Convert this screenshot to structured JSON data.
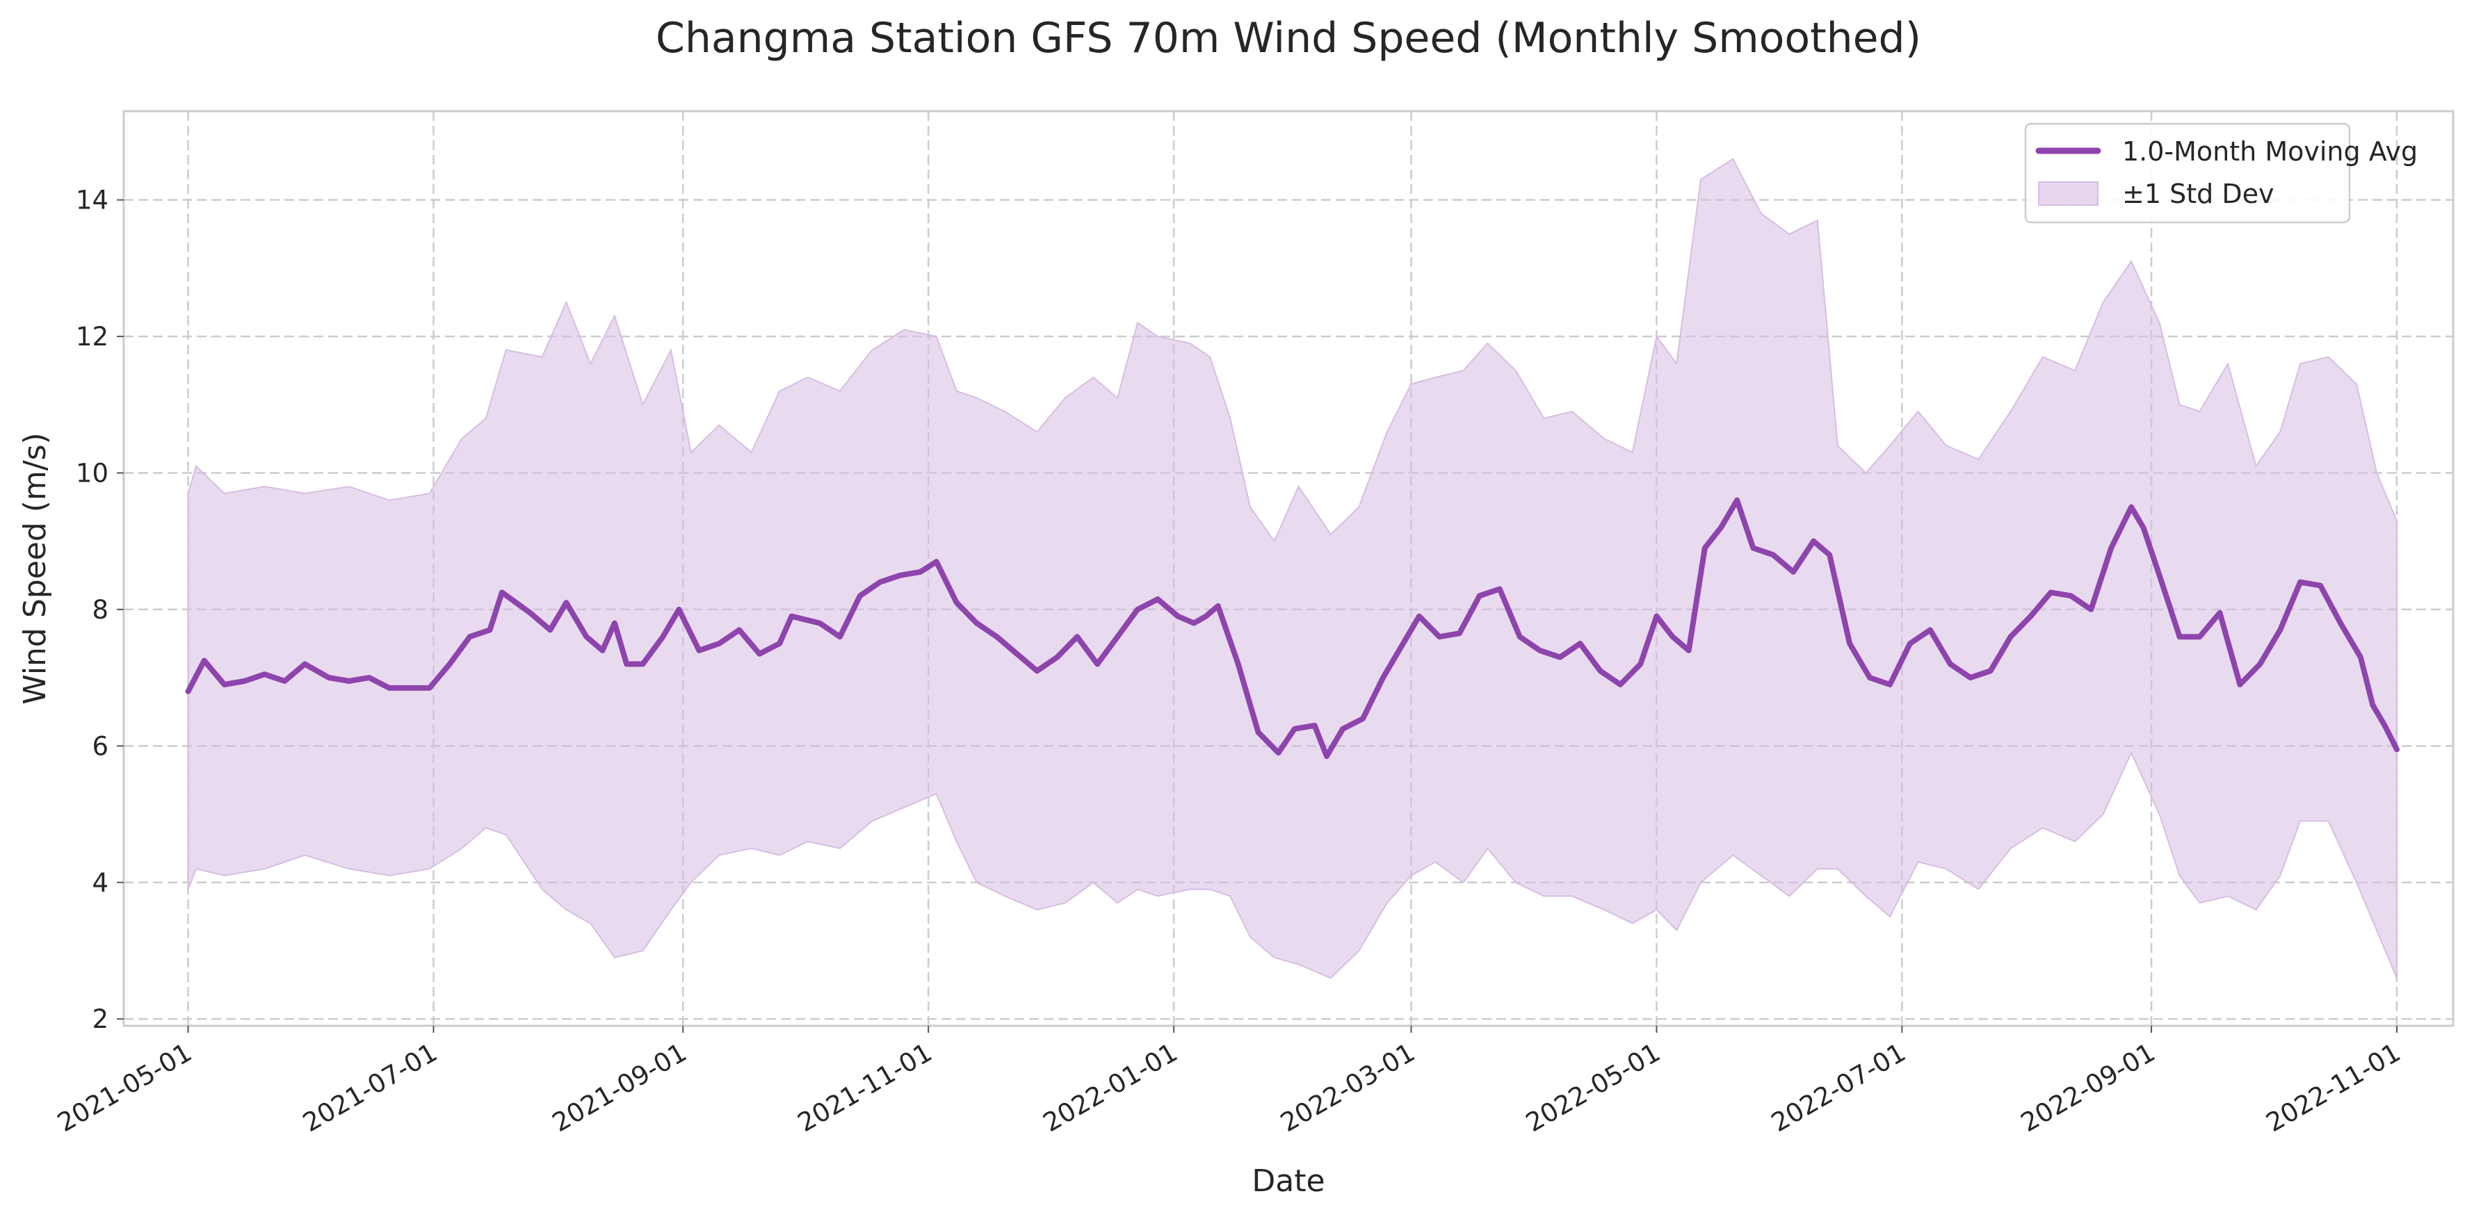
{
  "chart_data": {
    "type": "line",
    "title": "Changma Station GFS 70m Wind Speed (Monthly Smoothed)",
    "xlabel": "Date",
    "ylabel": "Wind Speed (m/s)",
    "x_range": [
      "2021-04-15",
      "2022-11-15"
    ],
    "ylim": [
      1.9,
      15.3
    ],
    "y_ticks": [
      2,
      4,
      6,
      8,
      10,
      12,
      14
    ],
    "x_ticks": [
      "2021-05-01",
      "2021-07-01",
      "2021-09-01",
      "2021-11-01",
      "2022-01-01",
      "2022-03-01",
      "2022-05-01",
      "2022-07-01",
      "2022-09-01",
      "2022-11-01"
    ],
    "grid": true,
    "legend_position": "top-right",
    "colors": {
      "line": "#8E44AD",
      "band": "#D7BDE2",
      "grid": "#CCCCCC",
      "axes": "#CCCCCC"
    },
    "series": [
      {
        "name": "1.0-Month Moving Avg",
        "kind": "line",
        "points": [
          [
            "2021-05-01",
            6.8
          ],
          [
            "2021-05-05",
            7.25
          ],
          [
            "2021-05-10",
            6.9
          ],
          [
            "2021-05-15",
            6.95
          ],
          [
            "2021-05-20",
            7.05
          ],
          [
            "2021-05-25",
            6.95
          ],
          [
            "2021-05-30",
            7.2
          ],
          [
            "2021-06-05",
            7.0
          ],
          [
            "2021-06-10",
            6.95
          ],
          [
            "2021-06-15",
            7.0
          ],
          [
            "2021-06-20",
            6.85
          ],
          [
            "2021-06-25",
            6.85
          ],
          [
            "2021-06-30",
            6.85
          ],
          [
            "2021-07-05",
            7.2
          ],
          [
            "2021-07-10",
            7.6
          ],
          [
            "2021-07-15",
            7.7
          ],
          [
            "2021-07-18",
            8.25
          ],
          [
            "2021-07-25",
            7.95
          ],
          [
            "2021-07-30",
            7.7
          ],
          [
            "2021-08-03",
            8.1
          ],
          [
            "2021-08-08",
            7.6
          ],
          [
            "2021-08-12",
            7.4
          ],
          [
            "2021-08-15",
            7.8
          ],
          [
            "2021-08-18",
            7.2
          ],
          [
            "2021-08-22",
            7.2
          ],
          [
            "2021-08-27",
            7.6
          ],
          [
            "2021-08-31",
            8.0
          ],
          [
            "2021-09-05",
            7.4
          ],
          [
            "2021-09-10",
            7.5
          ],
          [
            "2021-09-15",
            7.7
          ],
          [
            "2021-09-20",
            7.35
          ],
          [
            "2021-09-25",
            7.5
          ],
          [
            "2021-09-28",
            7.9
          ],
          [
            "2021-10-05",
            7.8
          ],
          [
            "2021-10-10",
            7.6
          ],
          [
            "2021-10-15",
            8.2
          ],
          [
            "2021-10-20",
            8.4
          ],
          [
            "2021-10-25",
            8.5
          ],
          [
            "2021-10-30",
            8.55
          ],
          [
            "2021-11-03",
            8.7
          ],
          [
            "2021-11-08",
            8.1
          ],
          [
            "2021-11-13",
            7.8
          ],
          [
            "2021-11-18",
            7.6
          ],
          [
            "2021-11-23",
            7.35
          ],
          [
            "2021-11-28",
            7.1
          ],
          [
            "2021-12-03",
            7.3
          ],
          [
            "2021-12-08",
            7.6
          ],
          [
            "2021-12-13",
            7.2
          ],
          [
            "2021-12-18",
            7.6
          ],
          [
            "2021-12-23",
            8.0
          ],
          [
            "2021-12-28",
            8.15
          ],
          [
            "2022-01-02",
            7.9
          ],
          [
            "2022-01-06",
            7.8
          ],
          [
            "2022-01-09",
            7.9
          ],
          [
            "2022-01-12",
            8.05
          ],
          [
            "2022-01-17",
            7.2
          ],
          [
            "2022-01-22",
            6.2
          ],
          [
            "2022-01-27",
            5.9
          ],
          [
            "2022-01-31",
            6.25
          ],
          [
            "2022-02-05",
            6.3
          ],
          [
            "2022-02-08",
            5.85
          ],
          [
            "2022-02-12",
            6.25
          ],
          [
            "2022-02-17",
            6.4
          ],
          [
            "2022-02-22",
            7.0
          ],
          [
            "2022-02-27",
            7.5
          ],
          [
            "2022-03-03",
            7.9
          ],
          [
            "2022-03-08",
            7.6
          ],
          [
            "2022-03-13",
            7.65
          ],
          [
            "2022-03-18",
            8.2
          ],
          [
            "2022-03-23",
            8.3
          ],
          [
            "2022-03-28",
            7.6
          ],
          [
            "2022-04-02",
            7.4
          ],
          [
            "2022-04-07",
            7.3
          ],
          [
            "2022-04-12",
            7.5
          ],
          [
            "2022-04-17",
            7.1
          ],
          [
            "2022-04-22",
            6.9
          ],
          [
            "2022-04-27",
            7.2
          ],
          [
            "2022-05-01",
            7.9
          ],
          [
            "2022-05-05",
            7.6
          ],
          [
            "2022-05-09",
            7.4
          ],
          [
            "2022-05-13",
            8.9
          ],
          [
            "2022-05-17",
            9.2
          ],
          [
            "2022-05-21",
            9.6
          ],
          [
            "2022-05-25",
            8.9
          ],
          [
            "2022-05-30",
            8.8
          ],
          [
            "2022-06-04",
            8.55
          ],
          [
            "2022-06-09",
            9.0
          ],
          [
            "2022-06-13",
            8.8
          ],
          [
            "2022-06-18",
            7.5
          ],
          [
            "2022-06-23",
            7.0
          ],
          [
            "2022-06-28",
            6.9
          ],
          [
            "2022-07-03",
            7.5
          ],
          [
            "2022-07-08",
            7.7
          ],
          [
            "2022-07-13",
            7.2
          ],
          [
            "2022-07-18",
            7.0
          ],
          [
            "2022-07-23",
            7.1
          ],
          [
            "2022-07-28",
            7.6
          ],
          [
            "2022-08-02",
            7.9
          ],
          [
            "2022-08-07",
            8.25
          ],
          [
            "2022-08-12",
            8.2
          ],
          [
            "2022-08-17",
            8.0
          ],
          [
            "2022-08-22",
            8.9
          ],
          [
            "2022-08-27",
            9.5
          ],
          [
            "2022-08-30",
            9.2
          ],
          [
            "2022-09-03",
            8.5
          ],
          [
            "2022-09-08",
            7.6
          ],
          [
            "2022-09-13",
            7.6
          ],
          [
            "2022-09-18",
            7.95
          ],
          [
            "2022-09-23",
            6.9
          ],
          [
            "2022-09-28",
            7.2
          ],
          [
            "2022-10-03",
            7.7
          ],
          [
            "2022-10-08",
            8.4
          ],
          [
            "2022-10-13",
            8.35
          ],
          [
            "2022-10-18",
            7.8
          ],
          [
            "2022-10-23",
            7.3
          ],
          [
            "2022-10-26",
            6.6
          ],
          [
            "2022-10-29",
            6.3
          ],
          [
            "2022-11-01",
            5.95
          ]
        ]
      },
      {
        "name": "±1 Std Dev",
        "kind": "band",
        "points": [
          [
            "2021-05-01",
            3.9,
            9.7
          ],
          [
            "2021-05-03",
            4.2,
            10.1
          ],
          [
            "2021-05-10",
            4.1,
            9.7
          ],
          [
            "2021-05-20",
            4.2,
            9.8
          ],
          [
            "2021-05-30",
            4.4,
            9.7
          ],
          [
            "2021-06-10",
            4.2,
            9.8
          ],
          [
            "2021-06-20",
            4.1,
            9.6
          ],
          [
            "2021-06-30",
            4.2,
            9.7
          ],
          [
            "2021-07-08",
            4.5,
            10.5
          ],
          [
            "2021-07-14",
            4.8,
            10.8
          ],
          [
            "2021-07-19",
            4.7,
            11.8
          ],
          [
            "2021-07-28",
            3.9,
            11.7
          ],
          [
            "2021-08-03",
            3.6,
            12.5
          ],
          [
            "2021-08-09",
            3.4,
            11.6
          ],
          [
            "2021-08-15",
            2.9,
            12.3
          ],
          [
            "2021-08-22",
            3.0,
            11.0
          ],
          [
            "2021-08-29",
            3.6,
            11.8
          ],
          [
            "2021-09-03",
            4.0,
            10.3
          ],
          [
            "2021-09-10",
            4.4,
            10.7
          ],
          [
            "2021-09-18",
            4.5,
            10.3
          ],
          [
            "2021-09-25",
            4.4,
            11.2
          ],
          [
            "2021-10-02",
            4.6,
            11.4
          ],
          [
            "2021-10-10",
            4.5,
            11.2
          ],
          [
            "2021-10-18",
            4.9,
            11.8
          ],
          [
            "2021-10-26",
            5.1,
            12.1
          ],
          [
            "2021-11-03",
            5.3,
            12.0
          ],
          [
            "2021-11-08",
            4.6,
            11.2
          ],
          [
            "2021-11-13",
            4.0,
            11.1
          ],
          [
            "2021-11-20",
            3.8,
            10.9
          ],
          [
            "2021-11-28",
            3.6,
            10.6
          ],
          [
            "2021-12-05",
            3.7,
            11.1
          ],
          [
            "2021-12-12",
            4.0,
            11.4
          ],
          [
            "2021-12-18",
            3.7,
            11.1
          ],
          [
            "2021-12-23",
            3.9,
            12.2
          ],
          [
            "2021-12-28",
            3.8,
            12.0
          ],
          [
            "2022-01-05",
            3.9,
            11.9
          ],
          [
            "2022-01-10",
            3.9,
            11.7
          ],
          [
            "2022-01-15",
            3.8,
            10.8
          ],
          [
            "2022-01-20",
            3.2,
            9.5
          ],
          [
            "2022-01-26",
            2.9,
            9.0
          ],
          [
            "2022-02-01",
            2.8,
            9.8
          ],
          [
            "2022-02-09",
            2.6,
            9.1
          ],
          [
            "2022-02-16",
            3.0,
            9.5
          ],
          [
            "2022-02-23",
            3.7,
            10.6
          ],
          [
            "2022-03-01",
            4.1,
            11.3
          ],
          [
            "2022-03-07",
            4.3,
            11.4
          ],
          [
            "2022-03-14",
            4.0,
            11.5
          ],
          [
            "2022-03-20",
            4.5,
            11.9
          ],
          [
            "2022-03-27",
            4.0,
            11.5
          ],
          [
            "2022-04-03",
            3.8,
            10.8
          ],
          [
            "2022-04-10",
            3.8,
            10.9
          ],
          [
            "2022-04-18",
            3.6,
            10.5
          ],
          [
            "2022-04-25",
            3.4,
            10.3
          ],
          [
            "2022-05-01",
            3.6,
            12.0
          ],
          [
            "2022-05-06",
            3.3,
            11.6
          ],
          [
            "2022-05-12",
            4.0,
            14.3
          ],
          [
            "2022-05-20",
            4.4,
            14.6
          ],
          [
            "2022-05-27",
            4.1,
            13.8
          ],
          [
            "2022-06-03",
            3.8,
            13.5
          ],
          [
            "2022-06-10",
            4.2,
            13.7
          ],
          [
            "2022-06-15",
            4.2,
            10.4
          ],
          [
            "2022-06-22",
            3.8,
            10.0
          ],
          [
            "2022-06-28",
            3.5,
            10.4
          ],
          [
            "2022-07-05",
            4.3,
            10.9
          ],
          [
            "2022-07-12",
            4.2,
            10.4
          ],
          [
            "2022-07-20",
            3.9,
            10.2
          ],
          [
            "2022-07-28",
            4.5,
            10.9
          ],
          [
            "2022-08-05",
            4.8,
            11.7
          ],
          [
            "2022-08-13",
            4.6,
            11.5
          ],
          [
            "2022-08-20",
            5.0,
            12.5
          ],
          [
            "2022-08-27",
            5.9,
            13.1
          ],
          [
            "2022-09-03",
            5.0,
            12.2
          ],
          [
            "2022-09-08",
            4.1,
            11.0
          ],
          [
            "2022-09-13",
            3.7,
            10.9
          ],
          [
            "2022-09-20",
            3.8,
            11.6
          ],
          [
            "2022-09-27",
            3.6,
            10.1
          ],
          [
            "2022-10-03",
            4.1,
            10.6
          ],
          [
            "2022-10-08",
            4.9,
            11.6
          ],
          [
            "2022-10-15",
            4.9,
            11.7
          ],
          [
            "2022-10-22",
            4.0,
            11.3
          ],
          [
            "2022-10-27",
            3.3,
            10.0
          ],
          [
            "2022-11-01",
            2.6,
            9.3
          ]
        ]
      }
    ]
  }
}
